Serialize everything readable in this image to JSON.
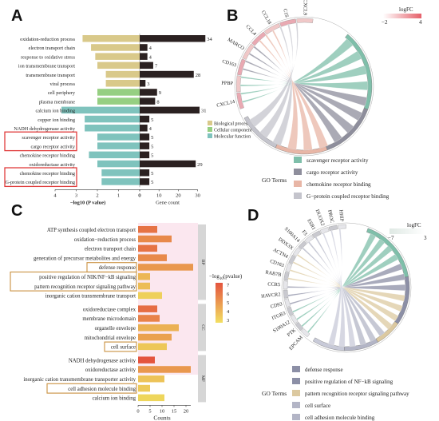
{
  "panels": {
    "A": "A",
    "B": "B",
    "C": "C",
    "D": "D"
  },
  "legendA": [
    {
      "label": "Biological process",
      "color": "#d9c98a"
    },
    {
      "label": "Cellular component",
      "color": "#96cf82"
    },
    {
      "label": "Molecular function",
      "color": "#7fc3bd"
    }
  ],
  "legendB": {
    "title": "GO Terms",
    "logfc_title": "logFC",
    "logfc_min": "−2",
    "logfc_max": "4",
    "items": [
      {
        "label": "scavenger receptor activity",
        "color": "#7fbfaa"
      },
      {
        "label": "cargo receptor activity",
        "color": "#8e8e9c"
      },
      {
        "label": "chemokine receptor binding",
        "color": "#e8b6a6"
      },
      {
        "label": "G−protein coupled receptor binding",
        "color": "#c4c4cc"
      }
    ]
  },
  "legendC": {
    "title": "−log",
    "sub": "10",
    "tail": "(pvalue)",
    "ticks": [
      "7",
      "6",
      "5",
      "4",
      "3"
    ]
  },
  "legendD": {
    "title": "GO Terms",
    "logfc_title": "logFC",
    "logfc_min": "−7",
    "logfc_max": "3",
    "items": [
      {
        "label": "defense response",
        "color": "#8c8fa6"
      },
      {
        "label": "positive regulation of NF−kB signaling",
        "color": "#8c8fa6"
      },
      {
        "label": "pattern recognition receptor signaling pathway",
        "color": "#dcc9a0"
      },
      {
        "label": "cell surface",
        "color": "#b3b5c6"
      },
      {
        "label": "cell adhesion molecule binding",
        "color": "#b3b5c6"
      }
    ]
  },
  "genesB": [
    "CXCL14",
    "PPBP",
    "CD163",
    "MARCO",
    "CCL4",
    "CCL18",
    "C1S",
    "CXCL9"
  ],
  "genesD": [
    "EPCAM",
    "PTK",
    "S100A12",
    "ITGB3",
    "CD93",
    "HAVCR2",
    "CCR5",
    "RAB7B",
    "CD163",
    "ACTN4",
    "DDX3X",
    "S100A14",
    "F3",
    "ESR1",
    "DUOX2",
    "PROC",
    "HHIP"
  ],
  "chart_data": [
    {
      "type": "bar",
      "panel": "A",
      "categories": [
        "oxidation-reduction process",
        "electron transport chain",
        "response to oxidative stress",
        "ion transmembrane transport",
        "transmembrane transport",
        "viral process",
        "cell periphery",
        "plasma membrane",
        "calcium ion binding",
        "copper ion binding",
        "NADH dehydrogenase activity",
        "scavenger receptor activity",
        "cargo receptor activity",
        "chemokine receptor binding",
        "oxidoreductase activity",
        "chemokine receptor binding",
        "G-protein coupled receptor binding"
      ],
      "category_group": [
        "BP",
        "BP",
        "BP",
        "BP",
        "BP",
        "BP",
        "CC",
        "CC",
        "MF",
        "MF",
        "MF",
        "MF",
        "MF",
        "MF",
        "MF",
        "MF",
        "MF"
      ],
      "series": [
        {
          "name": "−log10 (P value)",
          "values": [
            2.7,
            2.3,
            2.1,
            2.0,
            1.6,
            1.6,
            2.0,
            2.0,
            3.7,
            2.6,
            2.6,
            2.0,
            2.0,
            2.4,
            2.0,
            1.8,
            1.8
          ]
        },
        {
          "name": "Gene count",
          "values": [
            34,
            4,
            4,
            7,
            28,
            3,
            9,
            8,
            31,
            5,
            4,
            5,
            5,
            5,
            29,
            5,
            5
          ]
        }
      ],
      "left_ticks": [
        "4",
        "3",
        "2",
        "1",
        "0"
      ],
      "right_ticks": [
        "0",
        "10",
        "20",
        "30"
      ],
      "xlabel_left": "−log10 (P value)",
      "xlabel_right": "Gene count",
      "highlighted": [
        "scavenger receptor activity",
        "cargo receptor activity",
        "chemokine receptor binding",
        "G-protein coupled receptor binding"
      ]
    },
    {
      "type": "bar",
      "panel": "C",
      "categories": [
        "ATP synthesis coupled electron transport",
        "oxidation−reduction process",
        "electron transport chain",
        "generation of precursor metabolites and energy",
        "defense response",
        "positive regulation of NIK/NF−kB signaling",
        "pattern recognition receptor signaling pathway",
        "inorganic cation transmembrane transport",
        "oxidoreductase complex",
        "membrane microdomain",
        "organelle envelope",
        "mitochondrial envelope",
        "cell surface",
        "NADH dehydrogenase activity",
        "oxidoreductase activity",
        "inorganic cation transmembrane transporter activity",
        "cell adhesion molecule binding",
        "calcium ion binding"
      ],
      "groups": [
        "BP",
        "BP",
        "BP",
        "BP",
        "BP",
        "BP",
        "BP",
        "BP",
        "CC",
        "CC",
        "CC",
        "CC",
        "CC",
        "MF",
        "MF",
        "MF",
        "MF",
        "MF"
      ],
      "group_labels": [
        "BP",
        "CC",
        "MF"
      ],
      "values": [
        8,
        14,
        8,
        12,
        23,
        5,
        5,
        10,
        8,
        9,
        17,
        14,
        12,
        7,
        22,
        11,
        5,
        11
      ],
      "neglog10_pvalue": [
        6.0,
        5.3,
        6.0,
        5.3,
        4.8,
        3.8,
        3.6,
        3.0,
        6.2,
        5.5,
        4.0,
        4.5,
        3.3,
        7.0,
        4.8,
        3.4,
        3.2,
        2.8
      ],
      "xticks": [
        "0",
        "5",
        "10",
        "15",
        "20"
      ],
      "xlabel": "Counts",
      "highlighted": [
        "defense response",
        "positive regulation of NIK/NF−kB signaling",
        "pattern recognition receptor signaling pathway",
        "cell surface",
        "cell adhesion molecule binding"
      ]
    }
  ]
}
